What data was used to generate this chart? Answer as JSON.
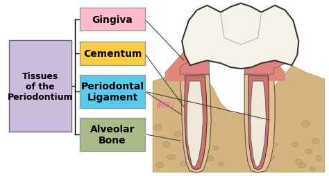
{
  "bg_color": "#ffffff",
  "main_box": {
    "text": "Tissues\nof the\nPeriodontium",
    "facecolor": "#ccbbdd",
    "edgecolor": "#666666",
    "fontsize": 9,
    "fontweight": "bold"
  },
  "branches": [
    {
      "label": "Gingiva",
      "facecolor": "#ffbbcc",
      "edgecolor": "#999999",
      "fontsize": 10,
      "fontweight": "bold"
    },
    {
      "label": "Cementum",
      "facecolor": "#ffcc44",
      "edgecolor": "#999999",
      "fontsize": 10,
      "fontweight": "bold"
    },
    {
      "label": "Periodontal\nLigament",
      "facecolor": "#55ccee",
      "edgecolor": "#999999",
      "fontsize": 10,
      "fontweight": "bold"
    },
    {
      "label": "Alveolar\nBone",
      "facecolor": "#aabb88",
      "edgecolor": "#999999",
      "fontsize": 10,
      "fontweight": "bold"
    }
  ],
  "annotation_text": "(PDL)",
  "annotation_color": "#ff44aa",
  "annotation_fontsize": 7
}
